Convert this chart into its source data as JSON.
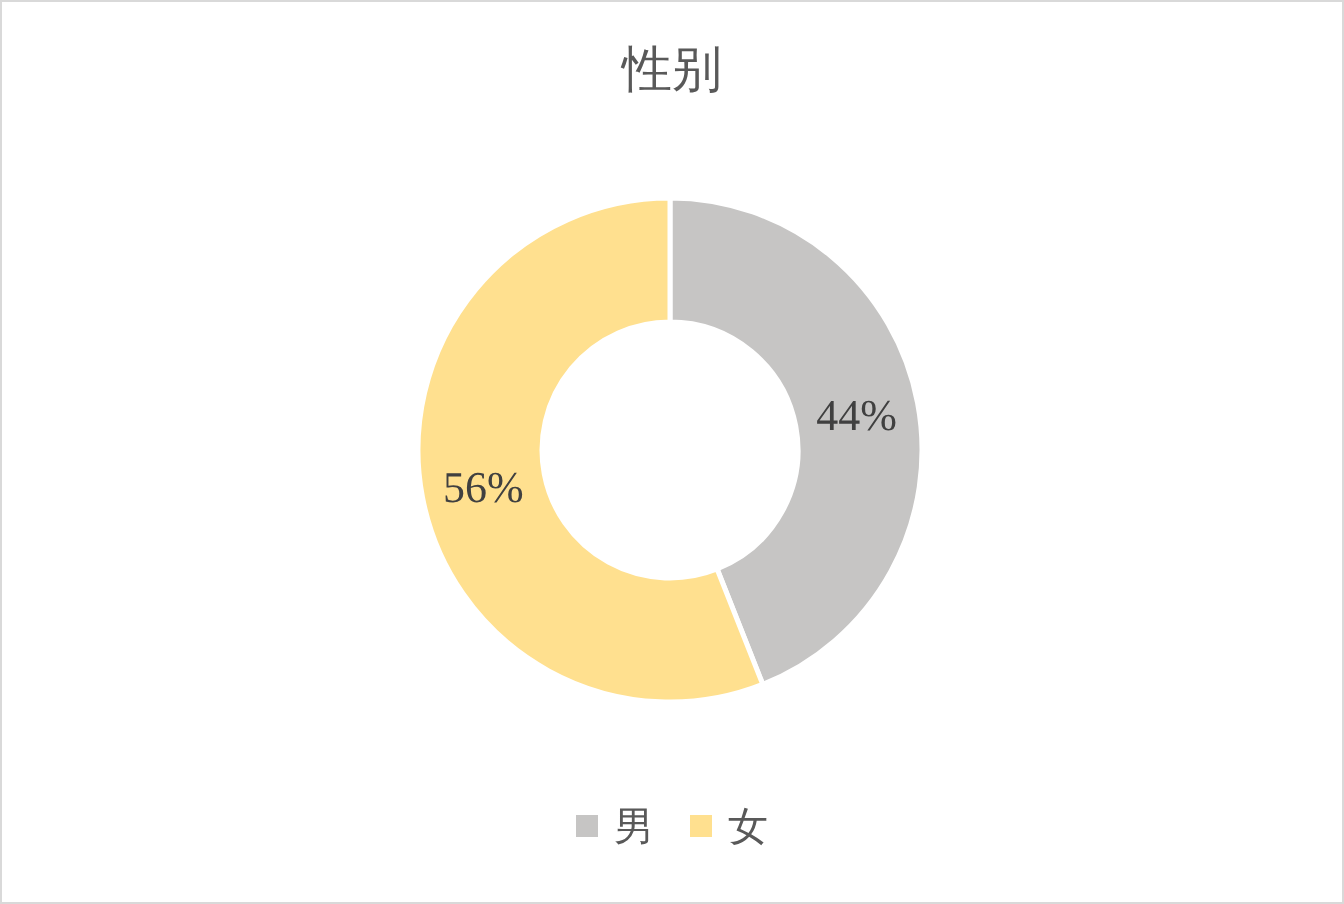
{
  "chart_data": {
    "type": "donut",
    "title": "性别",
    "categories": [
      "男",
      "女"
    ],
    "values": [
      44,
      56
    ],
    "colors": [
      "#c6c5c4",
      "#ffe08f"
    ],
    "value_labels": [
      "44%",
      "56%"
    ],
    "legend": "bottom"
  }
}
